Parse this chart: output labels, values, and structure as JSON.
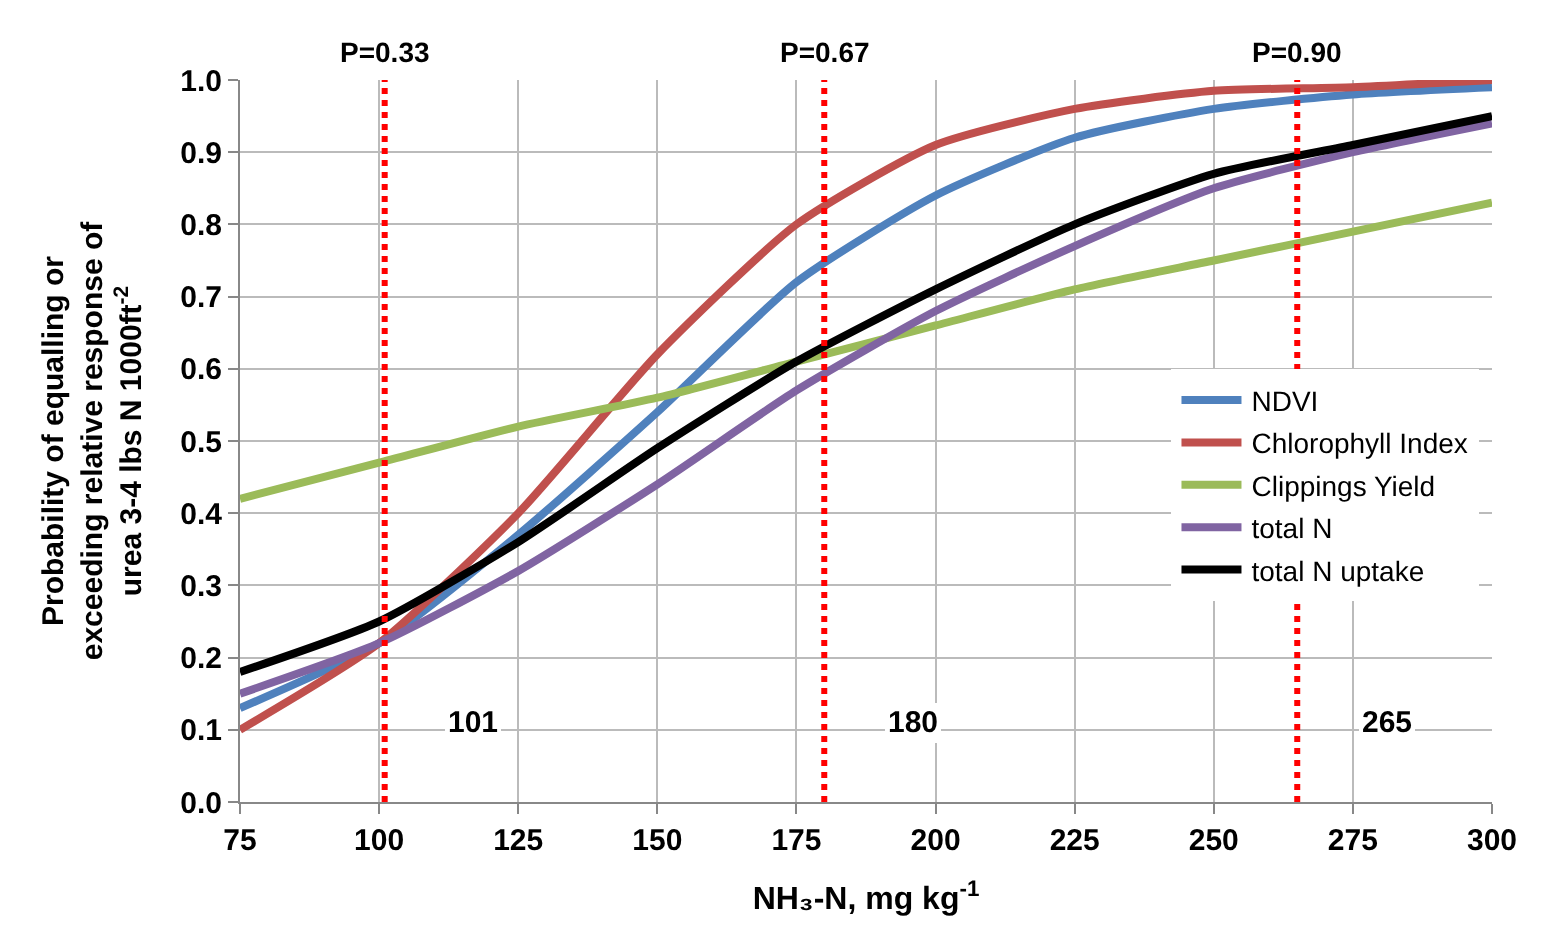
{
  "chart_data": {
    "type": "line",
    "xlabel": "NH₃-N, mg kg$^{-1}$",
    "ylabel": "Probability of equalling or\nexceeding relative response of\nurea 3-4 lbs N 1000ft$^{-2}$",
    "x": [
      75,
      100,
      125,
      150,
      175,
      200,
      225,
      250,
      275,
      300
    ],
    "series": [
      {
        "name": "NDVI",
        "color": "#4f81bd",
        "values": [
          0.13,
          0.22,
          0.37,
          0.54,
          0.72,
          0.84,
          0.92,
          0.96,
          0.98,
          0.99
        ]
      },
      {
        "name": "Chlorophyll Index",
        "color": "#c0504d",
        "values": [
          0.1,
          0.22,
          0.4,
          0.62,
          0.8,
          0.91,
          0.96,
          0.985,
          0.99,
          1.0
        ]
      },
      {
        "name": "Clippings Yield",
        "color": "#9bbb59",
        "values": [
          0.42,
          0.47,
          0.52,
          0.56,
          0.61,
          0.66,
          0.71,
          0.75,
          0.79,
          0.83
        ]
      },
      {
        "name": "total N",
        "color": "#8064a2",
        "values": [
          0.15,
          0.22,
          0.32,
          0.44,
          0.57,
          0.68,
          0.77,
          0.85,
          0.9,
          0.94
        ]
      },
      {
        "name": "total N uptake",
        "color": "#000000",
        "values": [
          0.18,
          0.25,
          0.36,
          0.49,
          0.61,
          0.71,
          0.8,
          0.87,
          0.91,
          0.95
        ]
      }
    ],
    "xlim": [
      75,
      300
    ],
    "xticks": [
      75,
      100,
      125,
      150,
      175,
      200,
      225,
      250,
      275,
      300
    ],
    "ylim": [
      0,
      1
    ],
    "yticks": [
      {
        "value": 0,
        "label": "0.0"
      },
      0.1,
      0.2,
      0.3,
      0.4,
      0.5,
      0.6,
      0.7,
      0.8,
      0.9,
      {
        "value": 1,
        "label": "1.0"
      }
    ],
    "ref_lines": [
      {
        "axis": "x",
        "value": 101,
        "label": "101",
        "color": "#ff0000",
        "line_style": "dotted"
      },
      {
        "axis": "x",
        "value": 180,
        "label": "180",
        "color": "#ff0000",
        "line_style": "dotted"
      },
      {
        "axis": "x",
        "value": 265,
        "label": "265",
        "color": "#ff0000",
        "line_style": "dotted"
      }
    ],
    "annotations": [
      {
        "text": "P=0.33",
        "x": 101,
        "y": 1.0
      },
      {
        "text": "P=0.67",
        "x": 180,
        "y": 1.0
      },
      {
        "text": "P=0.90",
        "x": 265,
        "y": 1.0
      }
    ],
    "grid": true,
    "legend": "right",
    "marker": "none",
    "line_style": "solid"
  }
}
